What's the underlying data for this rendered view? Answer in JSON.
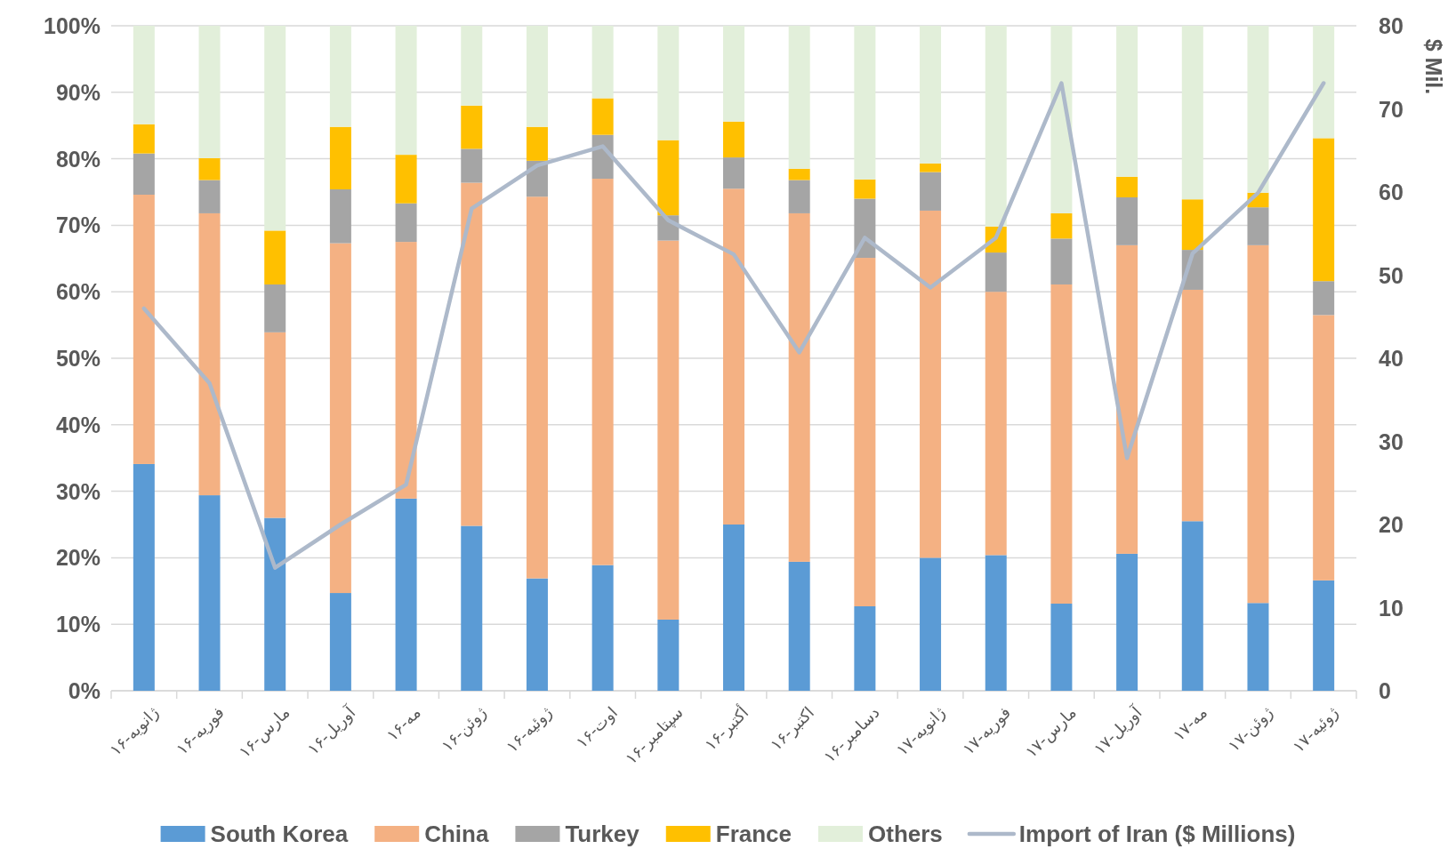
{
  "chart_data": {
    "type": "bar",
    "stacked": true,
    "grid": "y",
    "legend": "bottom",
    "y2label": "$ Mil.",
    "categories": [
      "ژانویه-۱۶",
      "فوریه-۱۶",
      "مارس-۱۶",
      "آوریل-۱۶",
      "مه-۱۶",
      "ژوئن-۱۶",
      "ژوئیه-۱۶",
      "اوت-۱۶",
      "سپتامبر-۱۶",
      "أکتبر-۱۶",
      "اکتبر-۱۶",
      "دسامبر-۱۶",
      "ژانویه-۱۷",
      "فوریه-۱۷",
      "مارس-۱۷",
      "آوریل-۱۷",
      "مه-۱۷",
      "ژوئن-۱۷",
      "ژوئیه-۱۷"
    ],
    "ylim": [
      0,
      100
    ],
    "yticks": [
      {
        "value": 0,
        "label": "0%"
      },
      {
        "value": 10,
        "label": "10%"
      },
      {
        "value": 20,
        "label": "20%"
      },
      {
        "value": 30,
        "label": "30%"
      },
      {
        "value": 40,
        "label": "40%"
      },
      {
        "value": 50,
        "label": "50%"
      },
      {
        "value": 60,
        "label": "60%"
      },
      {
        "value": 70,
        "label": "70%"
      },
      {
        "value": 80,
        "label": "80%"
      },
      {
        "value": 90,
        "label": "90%"
      },
      {
        "value": 100,
        "label": "100%"
      }
    ],
    "y2lim": [
      0,
      80
    ],
    "y2ticks": [
      0,
      10,
      20,
      30,
      40,
      50,
      60,
      70,
      80
    ],
    "series": [
      {
        "name": "South Korea",
        "color": "#5b9bd5",
        "values": [
          34.1,
          29.4,
          26.0,
          14.7,
          28.9,
          24.8,
          16.9,
          18.9,
          10.7,
          25.0,
          19.4,
          12.7,
          20.0,
          20.4,
          13.1,
          20.6,
          25.5,
          13.2,
          16.6
        ]
      },
      {
        "name": "China",
        "color": "#f4b183",
        "values": [
          40.5,
          42.4,
          27.9,
          52.6,
          38.6,
          51.6,
          57.4,
          58.1,
          57.0,
          50.5,
          52.4,
          52.4,
          52.2,
          39.6,
          48.0,
          46.4,
          34.8,
          53.8,
          39.9
        ]
      },
      {
        "name": "Turkey",
        "color": "#a5a5a5",
        "values": [
          6.2,
          5.0,
          7.2,
          8.1,
          5.8,
          5.1,
          5.4,
          6.6,
          3.8,
          4.7,
          5.0,
          8.9,
          5.8,
          5.9,
          6.9,
          7.2,
          6.0,
          5.7,
          5.1
        ]
      },
      {
        "name": "France",
        "color": "#ffc000",
        "values": [
          4.4,
          3.3,
          8.1,
          9.4,
          7.3,
          6.5,
          5.1,
          5.5,
          11.3,
          5.4,
          1.7,
          2.9,
          1.3,
          3.9,
          3.8,
          3.1,
          7.6,
          2.2,
          21.5
        ]
      },
      {
        "name": "Others",
        "color": "#e2efda",
        "values": [
          14.8,
          19.9,
          30.8,
          15.2,
          19.4,
          12.0,
          15.2,
          10.9,
          17.2,
          14.4,
          21.5,
          23.1,
          20.7,
          30.2,
          28.2,
          22.7,
          26.1,
          25.1,
          16.9
        ]
      },
      {
        "name": "Import of Iran ($ Millions)",
        "color": "#adb9ca",
        "type": "line",
        "axis": "y2",
        "values": [
          46.0,
          37.0,
          14.8,
          20.0,
          24.8,
          58.0,
          63.2,
          65.5,
          56.6,
          52.5,
          40.7,
          54.5,
          48.5,
          54.5,
          73.1,
          28.0,
          52.6,
          59.9,
          73.1
        ]
      }
    ]
  }
}
